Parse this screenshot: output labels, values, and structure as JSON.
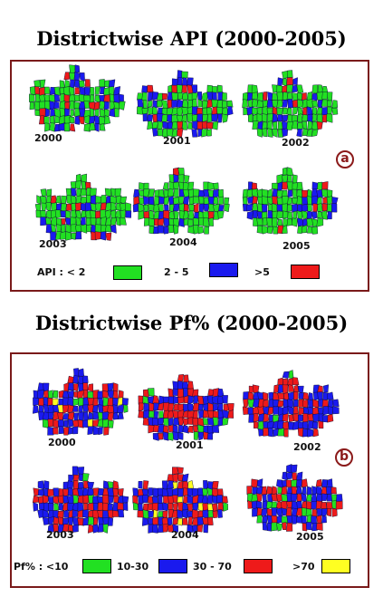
{
  "figure_a": {
    "title": "Districtwise API (2000-2005)",
    "badge": "a",
    "years": [
      "2000",
      "2001",
      "2002",
      "2003",
      "2004",
      "2005"
    ],
    "legend": {
      "prefix": "API : < 2",
      "items": [
        {
          "label": "",
          "color": "#22e022"
        },
        {
          "label": "2 - 5",
          "color": "#1a1aee"
        },
        {
          "label": ">5",
          "color": "#ee1a1a"
        }
      ]
    }
  },
  "figure_b": {
    "title": "Districtwise Pf% (2000-2005)",
    "badge": "b",
    "years": [
      "2000",
      "2001",
      "2002",
      "2003",
      "2004",
      "2005"
    ],
    "legend": {
      "prefix": "Pf% : <10",
      "items": [
        {
          "label": "10-30",
          "color": "#22e022"
        },
        {
          "label": "30 - 70",
          "color": "#1a1aee"
        },
        {
          "label": ">70",
          "color": "#ee1a1a"
        },
        {
          "label": "",
          "color": "#ffff22"
        }
      ]
    }
  },
  "colors": {
    "low": "#22e022",
    "mid": "#1a1aee",
    "high": "#ee1a1a",
    "very_high": "#ffff22",
    "border": "#7a1a1a"
  }
}
